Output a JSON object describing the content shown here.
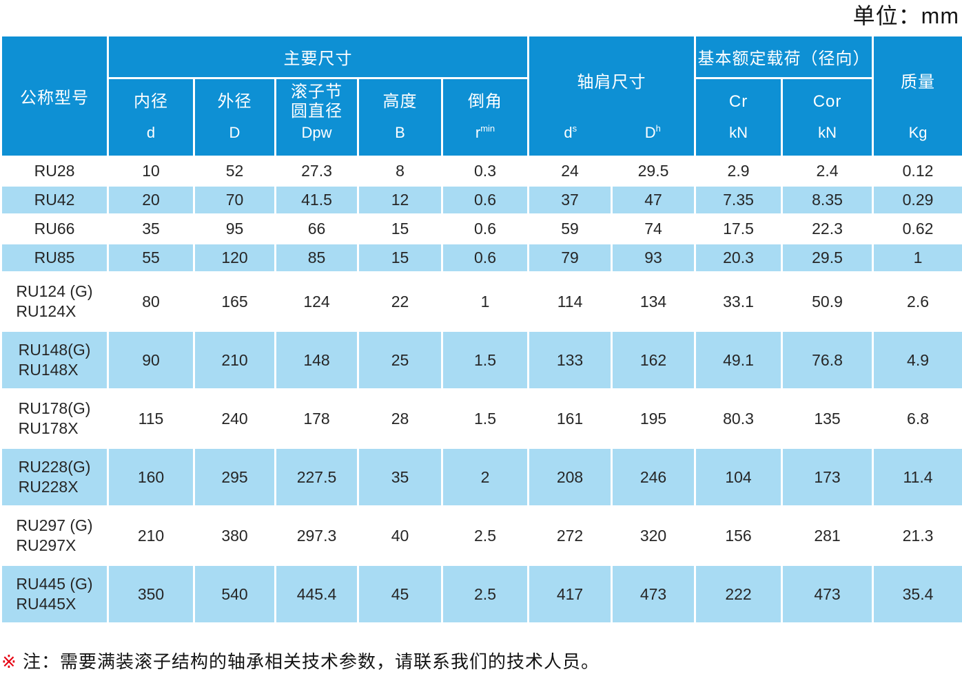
{
  "unit_label": "单位：mm",
  "colors": {
    "header_blue": "#0e90d4",
    "row_blue": "#a8dbf3",
    "note_red": "#e60012"
  },
  "table": {
    "header": {
      "model_label": "公称型号",
      "main_dims_label": "主要尺寸",
      "inner": {
        "label": "内径",
        "sym": "d"
      },
      "outer": {
        "label": "外径",
        "sym": "D"
      },
      "pitch": {
        "line1": "滚子节",
        "line2": "圆直径",
        "sym": "Dpw"
      },
      "height": {
        "label": "高度",
        "sym": "B"
      },
      "chamfer": {
        "label": "倒角",
        "sym_base": "r",
        "sym_sub": "min"
      },
      "shoulder": {
        "label": "轴肩尺寸",
        "ds_base": "d",
        "ds_sub": "s",
        "dh_base": "D",
        "dh_sub": "h"
      },
      "load_label": "基本额定载荷（径向）",
      "cr": {
        "label": "Cr",
        "sym": "kN"
      },
      "cor": {
        "label": "Cor",
        "sym": "kN"
      },
      "mass": {
        "label": "质量",
        "sym": "Kg"
      }
    },
    "rows": [
      {
        "model": [
          "RU28"
        ],
        "shaded": false,
        "values": [
          "10",
          "52",
          "27.3",
          "8",
          "0.3",
          "24",
          "29.5",
          "2.9",
          "2.4",
          "0.12"
        ]
      },
      {
        "model": [
          "RU42"
        ],
        "shaded": true,
        "values": [
          "20",
          "70",
          "41.5",
          "12",
          "0.6",
          "37",
          "47",
          "7.35",
          "8.35",
          "0.29"
        ]
      },
      {
        "model": [
          "RU66"
        ],
        "shaded": false,
        "values": [
          "35",
          "95",
          "66",
          "15",
          "0.6",
          "59",
          "74",
          "17.5",
          "22.3",
          "0.62"
        ]
      },
      {
        "model": [
          "RU85"
        ],
        "shaded": true,
        "values": [
          "55",
          "120",
          "85",
          "15",
          "0.6",
          "79",
          "93",
          "20.3",
          "29.5",
          "1"
        ]
      },
      {
        "model": [
          "RU124 (G)",
          "RU124X"
        ],
        "shaded": false,
        "values": [
          "80",
          "165",
          "124",
          "22",
          "1",
          "114",
          "134",
          "33.1",
          "50.9",
          "2.6"
        ]
      },
      {
        "model": [
          "RU148(G)",
          "RU148X"
        ],
        "shaded": true,
        "values": [
          "90",
          "210",
          "148",
          "25",
          "1.5",
          "133",
          "162",
          "49.1",
          "76.8",
          "4.9"
        ]
      },
      {
        "model": [
          "RU178(G)",
          "RU178X"
        ],
        "shaded": false,
        "values": [
          "115",
          "240",
          "178",
          "28",
          "1.5",
          "161",
          "195",
          "80.3",
          "135",
          "6.8"
        ]
      },
      {
        "model": [
          "RU228(G)",
          "RU228X"
        ],
        "shaded": true,
        "values": [
          "160",
          "295",
          "227.5",
          "35",
          "2",
          "208",
          "246",
          "104",
          "173",
          "11.4"
        ]
      },
      {
        "model": [
          "RU297 (G)",
          "RU297X"
        ],
        "shaded": false,
        "values": [
          "210",
          "380",
          "297.3",
          "40",
          "2.5",
          "272",
          "320",
          "156",
          "281",
          "21.3"
        ]
      },
      {
        "model": [
          "RU445 (G)",
          "RU445X"
        ],
        "shaded": true,
        "values": [
          "350",
          "540",
          "445.4",
          "45",
          "2.5",
          "417",
          "473",
          "222",
          "473",
          "35.4"
        ]
      }
    ]
  },
  "note": {
    "mark": "※",
    "text": "注：需要满装滚子结构的轴承相关技术参数，请联系我们的技术人员。"
  }
}
